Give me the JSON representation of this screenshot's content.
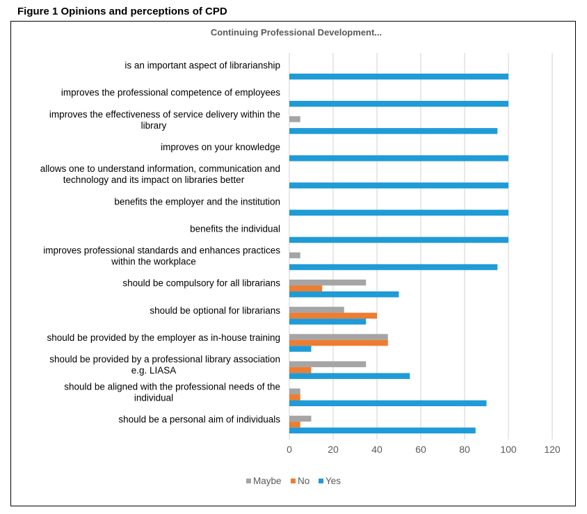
{
  "figure_caption": "Figure 1 Opinions and perceptions of CPD",
  "chart_data": {
    "type": "bar",
    "orientation": "horizontal",
    "title": "Continuing Professional Development...",
    "xlabel": "",
    "ylabel": "",
    "xlim": [
      0,
      120
    ],
    "xticks": [
      0,
      20,
      40,
      60,
      80,
      100,
      120
    ],
    "grid": "vertical",
    "legend_position": "bottom",
    "categories": [
      [
        "is an important aspect of librarianship"
      ],
      [
        "improves the professional competence of employees"
      ],
      [
        "improves the effectiveness of service delivery within the",
        "library"
      ],
      [
        "improves on your knowledge"
      ],
      [
        "allows one to understand information, communication and",
        "technology and its impact on libraries better"
      ],
      [
        "benefits the employer and the institution"
      ],
      [
        "benefits the individual"
      ],
      [
        "improves professional standards and enhances practices",
        "within the workplace"
      ],
      [
        "should be compulsory for all librarians"
      ],
      [
        "should be optional for librarians"
      ],
      [
        "should be provided by the employer as in-house training"
      ],
      [
        "should be provided by a professional library association",
        "e.g. LIASA"
      ],
      [
        "should be aligned with the professional needs of the",
        "individual"
      ],
      [
        "should be a personal aim of individuals"
      ]
    ],
    "series": [
      {
        "name": "Maybe",
        "color": "#A5A5A5",
        "values": [
          0,
          0,
          5,
          0,
          0,
          0,
          0,
          5,
          35,
          25,
          45,
          35,
          5,
          10
        ]
      },
      {
        "name": "No",
        "color": "#ED7D31",
        "values": [
          0,
          0,
          0,
          0,
          0,
          0,
          0,
          0,
          15,
          40,
          45,
          10,
          5,
          5
        ]
      },
      {
        "name": "Yes",
        "color": "#1F9BD7",
        "values": [
          100,
          100,
          95,
          100,
          100,
          100,
          100,
          95,
          50,
          35,
          10,
          55,
          90,
          85
        ]
      }
    ]
  }
}
